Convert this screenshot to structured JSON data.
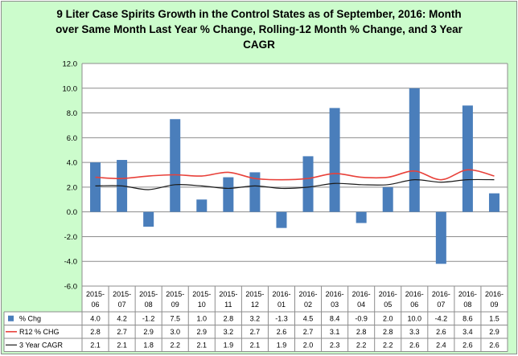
{
  "title_lines": [
    "9 Liter Case Spirits Growth in the Control States as of September, 2016:  Month",
    "over Same Month Last Year % Change, Rolling-12 Month % Change, and 3 Year",
    "CAGR"
  ],
  "chart_data": {
    "type": "bar",
    "title": "9 Liter Case Spirits Growth in the Control States as of September, 2016:  Month over Same Month Last Year % Change, Rolling-12 Month % Change, and 3 Year CAGR",
    "ylim": [
      -6.0,
      12.0
    ],
    "yticks": [
      "12.0",
      "10.0",
      "8.0",
      "6.0",
      "4.0",
      "2.0",
      "0.0",
      "-2.0",
      "-4.0",
      "-6.0"
    ],
    "ytick_values": [
      12,
      10,
      8,
      6,
      4,
      2,
      0,
      -2,
      -4,
      -6
    ],
    "grid": true,
    "legend": "data table",
    "categories": [
      [
        "2015-",
        "06"
      ],
      [
        "2015-",
        "07"
      ],
      [
        "2015-",
        "08"
      ],
      [
        "2015-",
        "09"
      ],
      [
        "2015-",
        "10"
      ],
      [
        "2015-",
        "11"
      ],
      [
        "2015-",
        "12"
      ],
      [
        "2016-",
        "01"
      ],
      [
        "2016-",
        "02"
      ],
      [
        "2016-",
        "03"
      ],
      [
        "2016-",
        "04"
      ],
      [
        "2016-",
        "05"
      ],
      [
        "2016-",
        "06"
      ],
      [
        "2016-",
        "07"
      ],
      [
        "2016-",
        "08"
      ],
      [
        "2016-",
        "09"
      ]
    ],
    "series": [
      {
        "name": "% Chg",
        "kind": "bar",
        "color": "#4a7ebb",
        "values": [
          4.0,
          4.2,
          -1.2,
          7.5,
          1.0,
          2.8,
          3.2,
          -1.3,
          4.5,
          8.4,
          -0.9,
          2.0,
          10.0,
          -4.2,
          8.6,
          1.5
        ],
        "labels": [
          "4.0",
          "4.2",
          "-1.2",
          "7.5",
          "1.0",
          "2.8",
          "3.2",
          "-1.3",
          "4.5",
          "8.4",
          "-0.9",
          "2.0",
          "10.0",
          "-4.2",
          "8.6",
          "1.5"
        ]
      },
      {
        "name": "R12 % CHG",
        "kind": "line",
        "color": "#e8413a",
        "values": [
          2.8,
          2.7,
          2.9,
          3.0,
          2.9,
          3.2,
          2.7,
          2.6,
          2.7,
          3.1,
          2.8,
          2.8,
          3.3,
          2.6,
          3.4,
          2.9
        ],
        "labels": [
          "2.8",
          "2.7",
          "2.9",
          "3.0",
          "2.9",
          "3.2",
          "2.7",
          "2.6",
          "2.7",
          "3.1",
          "2.8",
          "2.8",
          "3.3",
          "2.6",
          "3.4",
          "2.9"
        ]
      },
      {
        "name": "3 Year CAGR",
        "kind": "line",
        "color": "#1a1a1a",
        "values": [
          2.1,
          2.1,
          1.8,
          2.2,
          2.1,
          1.9,
          2.1,
          1.9,
          2.0,
          2.3,
          2.2,
          2.2,
          2.6,
          2.4,
          2.6,
          2.6
        ],
        "labels": [
          "2.1",
          "2.1",
          "1.8",
          "2.2",
          "2.1",
          "1.9",
          "2.1",
          "1.9",
          "2.0",
          "2.3",
          "2.2",
          "2.2",
          "2.6",
          "2.4",
          "2.6",
          "2.6"
        ]
      }
    ]
  }
}
